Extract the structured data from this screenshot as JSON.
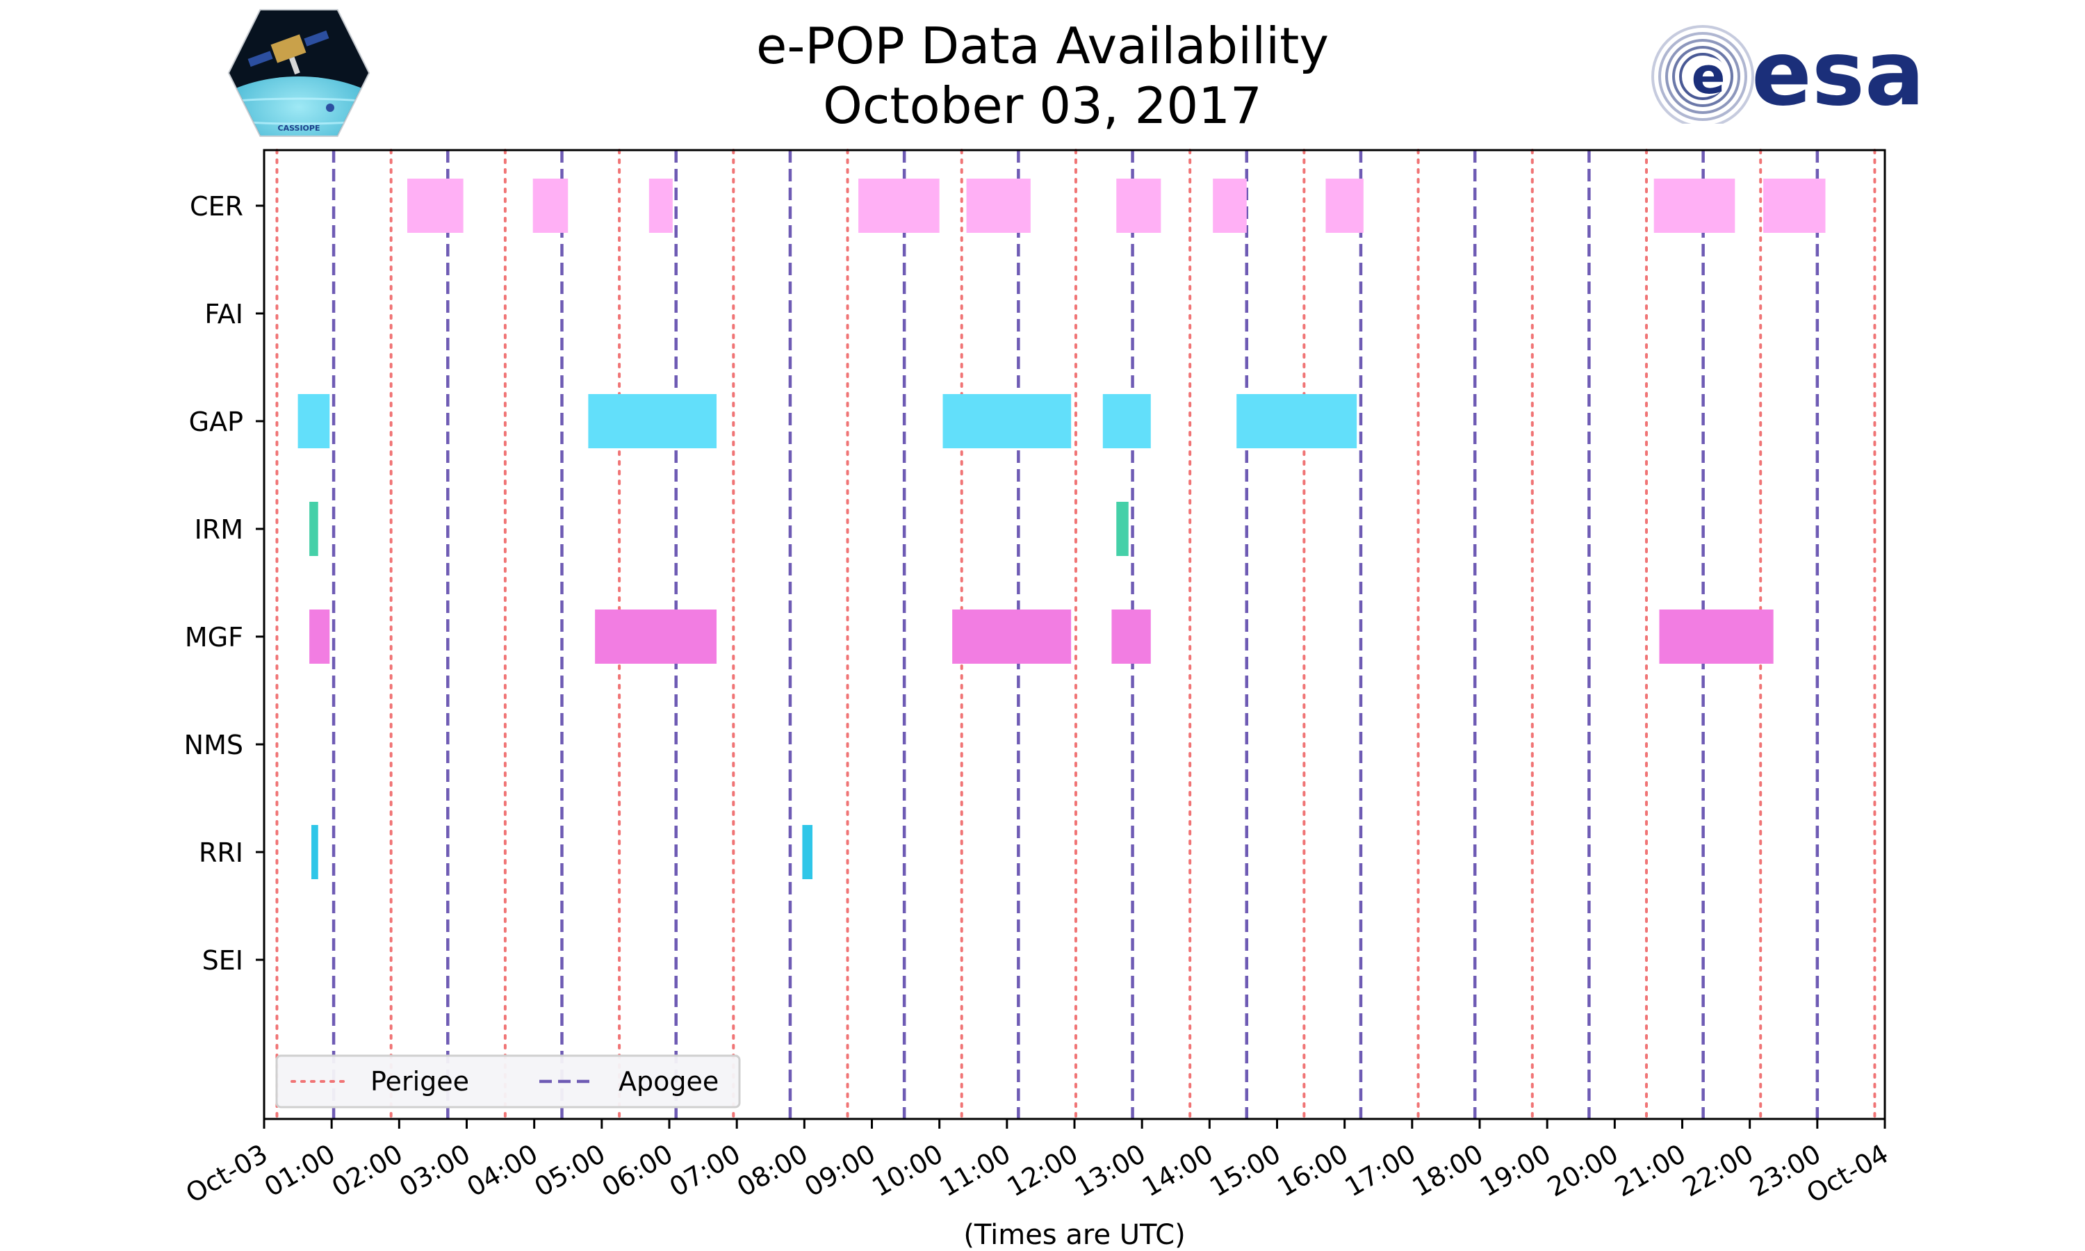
{
  "header": {
    "title_line1": "e-POP Data Availability",
    "title_line2": "October 03, 2017",
    "left_logo_text": "CASSIOPE",
    "right_logo_text": "esa"
  },
  "chart_data": {
    "type": "timeline",
    "title": "e-POP Data Availability October 03, 2017",
    "xlabel": "(Times are UTC)",
    "x_range_hours": [
      0,
      24
    ],
    "x_tick_labels": [
      "Oct-03",
      "01:00",
      "02:00",
      "03:00",
      "04:00",
      "05:00",
      "06:00",
      "07:00",
      "08:00",
      "09:00",
      "10:00",
      "11:00",
      "12:00",
      "13:00",
      "14:00",
      "15:00",
      "16:00",
      "17:00",
      "18:00",
      "19:00",
      "20:00",
      "21:00",
      "22:00",
      "23:00",
      "Oct-04"
    ],
    "instruments": [
      "CER",
      "FAI",
      "GAP",
      "IRM",
      "MGF",
      "NMS",
      "RRI",
      "SEI"
    ],
    "series_colors": {
      "CER": "#ffb0f5",
      "FAI": "#999999",
      "GAP": "#62dffa",
      "IRM": "#45d0a8",
      "MGF": "#f27de2",
      "NMS": "#999999",
      "RRI": "#2fc6e8",
      "SEI": "#999999"
    },
    "intervals": {
      "CER": [
        [
          2.12,
          2.95
        ],
        [
          3.98,
          4.5
        ],
        [
          5.7,
          6.05
        ],
        [
          8.8,
          10.0
        ],
        [
          10.4,
          11.35
        ],
        [
          12.62,
          13.28
        ],
        [
          14.05,
          14.55
        ],
        [
          15.72,
          16.28
        ],
        [
          20.58,
          21.78
        ],
        [
          22.2,
          23.12
        ]
      ],
      "FAI": [],
      "GAP": [
        [
          0.5,
          0.97
        ],
        [
          4.8,
          6.7
        ],
        [
          10.05,
          11.95
        ],
        [
          12.42,
          13.13
        ],
        [
          14.4,
          16.18
        ]
      ],
      "IRM": [
        [
          0.67,
          0.8
        ],
        [
          12.62,
          12.8
        ]
      ],
      "MGF": [
        [
          0.67,
          0.97
        ],
        [
          4.9,
          6.7
        ],
        [
          10.19,
          11.95
        ],
        [
          12.55,
          13.13
        ],
        [
          20.66,
          22.35
        ]
      ],
      "NMS": [],
      "RRI": [
        [
          0.7,
          0.8
        ],
        [
          7.97,
          8.12
        ]
      ],
      "SEI": []
    },
    "perigee_hours": [
      0.19,
      1.88,
      3.57,
      5.26,
      6.95,
      8.64,
      10.33,
      12.02,
      13.71,
      15.4,
      17.09,
      18.78,
      20.47,
      22.16,
      23.85
    ],
    "apogee_hours": [
      1.03,
      2.72,
      4.41,
      6.1,
      7.79,
      9.48,
      11.17,
      12.86,
      14.55,
      16.24,
      17.93,
      19.62,
      21.31,
      23.0
    ],
    "legend": {
      "position": "lower-left",
      "entries": [
        {
          "label": "Perigee",
          "color": "#f07475",
          "style": "dotted"
        },
        {
          "label": "Apogee",
          "color": "#6e5bb4",
          "style": "dashed"
        }
      ]
    }
  }
}
